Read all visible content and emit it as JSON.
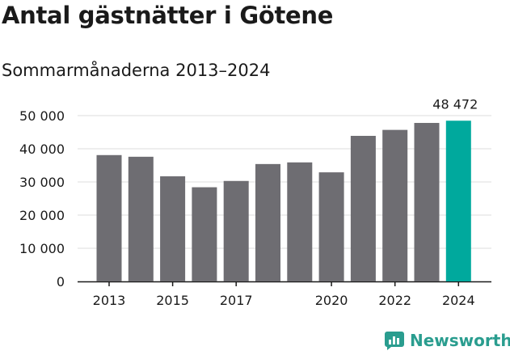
{
  "chart_data": {
    "type": "bar",
    "title": "Antal gästnätter i Götene",
    "subtitle": "Sommarmånaderna 2013–2024",
    "categories": [
      "2013",
      "2014",
      "2015",
      "2016",
      "2017",
      "2018",
      "2019",
      "2020",
      "2021",
      "2022",
      "2023",
      "2024"
    ],
    "values": [
      38100,
      37600,
      31700,
      28400,
      30300,
      35400,
      35900,
      32900,
      43900,
      45700,
      47800,
      48472
    ],
    "x_tick_labels": [
      "2013",
      "2015",
      "2017",
      "2020",
      "2022",
      "2024"
    ],
    "y_tick_labels": [
      "0",
      "10 000",
      "20 000",
      "30 000",
      "40 000",
      "50 000"
    ],
    "y_ticks": [
      0,
      10000,
      20000,
      30000,
      40000,
      50000
    ],
    "ylim": [
      0,
      50000
    ],
    "highlight_label": "48 472",
    "grid": true,
    "colors": {
      "bar": "#6e6d72",
      "highlight": "#00a99d",
      "grid": "#dddddd",
      "axis": "#1a1a1a"
    }
  },
  "brand": {
    "name": "Newsworthy",
    "logo_icon": "newsworthy-chart-icon",
    "color": "#2a9d8f"
  }
}
